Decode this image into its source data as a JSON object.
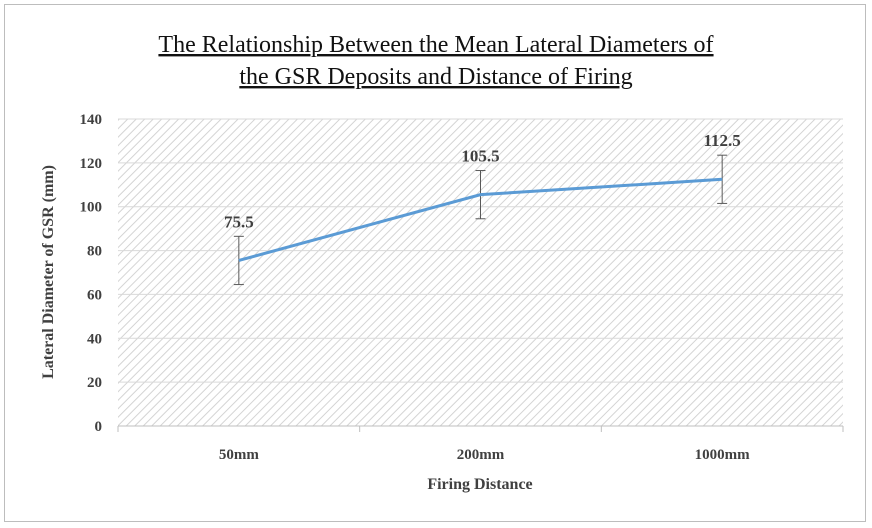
{
  "chart_data": {
    "type": "line",
    "title_lines": [
      "The Relationship Between the Mean Lateral Diameters of",
      "the GSR Deposits and Distance of Firing"
    ],
    "xlabel": "Firing Distance",
    "ylabel": "Lateral Diameter of GSR (mm)",
    "categories": [
      "50mm",
      "200mm",
      "1000mm"
    ],
    "series": [
      {
        "values": [
          75.5,
          105.5,
          112.5
        ],
        "error_low": [
          64.5,
          94.5,
          101.5
        ],
        "error_high": [
          86.5,
          116.5,
          123.5
        ],
        "color": "#5b9bd5"
      }
    ],
    "data_labels": [
      "75.5",
      "105.5",
      "112.5"
    ],
    "ylim": [
      0,
      140
    ],
    "yticks": [
      "0",
      "20",
      "40",
      "60",
      "80",
      "100",
      "120",
      "140"
    ],
    "grid": true,
    "plot_fill": "hatched",
    "legend": false
  }
}
